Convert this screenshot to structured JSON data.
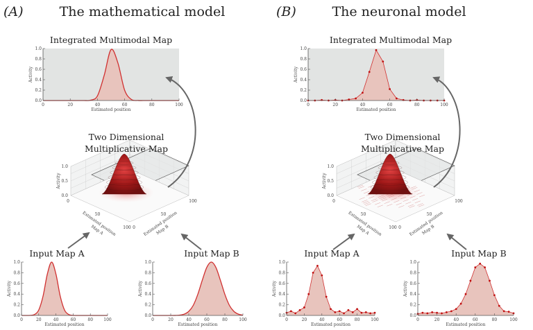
{
  "panels": [
    {
      "letter": "(A)",
      "title": "The mathematical model",
      "integrated_title": "Integrated Multimodal Map",
      "twod_title_1": "Two Dimensional",
      "twod_title_2": "Multiplicative Map",
      "input_a_title": "Input Map A",
      "input_b_title": "Input Map B"
    },
    {
      "letter": "(B)",
      "title": "The neuronal model",
      "integrated_title": "Integrated Multimodal Map",
      "twod_title_1": "Two Dimensional",
      "twod_title_2": "Multiplicative Map",
      "input_a_title": "Input Map A",
      "input_b_title": "Input Map B"
    }
  ],
  "axis": {
    "xlabel": "Estimated position",
    "ylabel": "Activity",
    "xticks": [
      "0",
      "20",
      "40",
      "60",
      "80",
      "100"
    ],
    "yticks": [
      "0.0",
      "0.2",
      "0.4",
      "0.6",
      "0.8",
      "1.0"
    ],
    "threed_zticks": [
      "0.0",
      "0.5",
      "1.0"
    ],
    "threed_ticks": [
      "0",
      "50",
      "100"
    ],
    "threed_xlabel_1": "Estimated position",
    "threed_xlabel_2a": "Map A",
    "threed_xlabel_2b": "Map B"
  },
  "colors": {
    "curve": "#d03030",
    "fill": "#e8c4bd",
    "background_integrated": "#e2e4e3",
    "arrow": "#666666"
  },
  "chart_data": [
    {
      "id": "A-integrated",
      "type": "area",
      "xlim": [
        0,
        100
      ],
      "ylim": [
        0,
        1
      ],
      "x": [
        0,
        5,
        10,
        15,
        20,
        25,
        30,
        35,
        40,
        45,
        50,
        55,
        60,
        65,
        70,
        75,
        80,
        85,
        90,
        95,
        100
      ],
      "values": [
        0,
        0,
        0,
        0,
        0,
        0,
        0,
        0.006,
        0.089,
        0.487,
        0.98,
        0.726,
        0.198,
        0.02,
        0.001,
        0,
        0,
        0,
        0,
        0,
        0
      ]
    },
    {
      "id": "A-input-a",
      "type": "area",
      "xlim": [
        0,
        100
      ],
      "ylim": [
        0,
        1
      ],
      "x": [
        0,
        5,
        10,
        15,
        20,
        25,
        30,
        35,
        40,
        45,
        50,
        55,
        60,
        65,
        70,
        75,
        80,
        85,
        90,
        95,
        100
      ],
      "values": [
        0,
        0,
        0.002,
        0.017,
        0.101,
        0.36,
        0.775,
        1,
        0.775,
        0.36,
        0.101,
        0.017,
        0.002,
        0,
        0,
        0,
        0,
        0,
        0,
        0,
        0
      ]
    },
    {
      "id": "A-input-b",
      "type": "area",
      "xlim": [
        0,
        100
      ],
      "ylim": [
        0,
        1
      ],
      "x": [
        0,
        5,
        10,
        15,
        20,
        25,
        30,
        35,
        40,
        45,
        50,
        55,
        60,
        65,
        70,
        75,
        80,
        85,
        90,
        95,
        100
      ],
      "values": [
        0,
        0,
        0,
        0,
        0,
        0.001,
        0.006,
        0.024,
        0.076,
        0.19,
        0.395,
        0.662,
        0.902,
        1,
        0.902,
        0.662,
        0.395,
        0.19,
        0.076,
        0.024,
        0.006
      ]
    },
    {
      "id": "B-integrated",
      "type": "scatter-area",
      "xlim": [
        0,
        100
      ],
      "ylim": [
        0,
        1
      ],
      "x": [
        0,
        5,
        10,
        15,
        20,
        25,
        30,
        35,
        40,
        45,
        50,
        55,
        60,
        65,
        70,
        75,
        80,
        85,
        90,
        95,
        100
      ],
      "values": [
        0,
        0,
        0.01,
        0,
        0.01,
        0,
        0.02,
        0.04,
        0.15,
        0.55,
        0.97,
        0.75,
        0.22,
        0.04,
        0.01,
        0,
        0.01,
        0,
        0,
        0,
        0
      ]
    },
    {
      "id": "B-input-a",
      "type": "scatter-area",
      "xlim": [
        0,
        100
      ],
      "ylim": [
        0,
        1
      ],
      "x": [
        0,
        5,
        10,
        15,
        20,
        25,
        30,
        35,
        40,
        45,
        50,
        55,
        60,
        65,
        70,
        75,
        80,
        85,
        90,
        95,
        100
      ],
      "values": [
        0.05,
        0.08,
        0.04,
        0.1,
        0.15,
        0.4,
        0.8,
        0.93,
        0.75,
        0.35,
        0.12,
        0.06,
        0.08,
        0.04,
        0.1,
        0.06,
        0.12,
        0.05,
        0.06,
        0.04,
        0.05
      ]
    },
    {
      "id": "B-input-b",
      "type": "scatter-area",
      "xlim": [
        0,
        100
      ],
      "ylim": [
        0,
        1
      ],
      "x": [
        0,
        5,
        10,
        15,
        20,
        25,
        30,
        35,
        40,
        45,
        50,
        55,
        60,
        65,
        70,
        75,
        80,
        85,
        90,
        95,
        100
      ],
      "values": [
        0.03,
        0.05,
        0.04,
        0.06,
        0.05,
        0.04,
        0.06,
        0.08,
        0.12,
        0.22,
        0.4,
        0.65,
        0.9,
        0.97,
        0.9,
        0.65,
        0.38,
        0.18,
        0.08,
        0.07,
        0.04
      ]
    }
  ]
}
